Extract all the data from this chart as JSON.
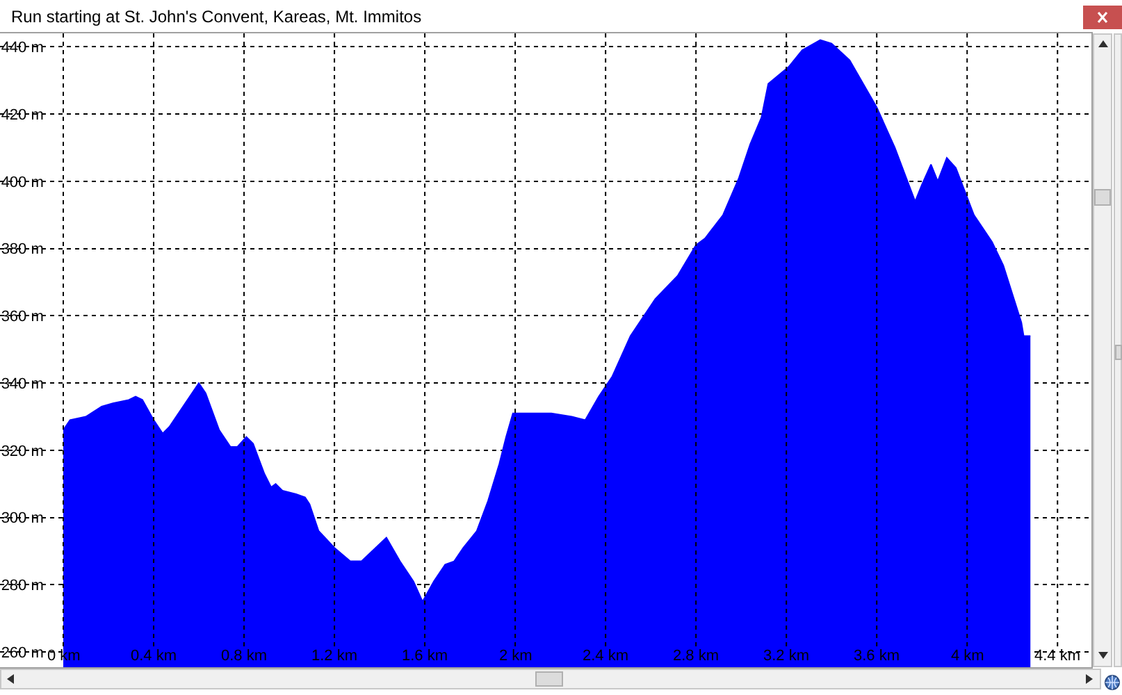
{
  "chart_data": {
    "type": "area",
    "title": "Run starting at St. John's Convent, Kareas, Mt. Immitos",
    "x": [
      0,
      0.03,
      0.1,
      0.17,
      0.22,
      0.29,
      0.32,
      0.35,
      0.4,
      0.44,
      0.47,
      0.6,
      0.63,
      0.69,
      0.74,
      0.77,
      0.81,
      0.84,
      0.89,
      0.92,
      0.94,
      0.97,
      1.03,
      1.07,
      1.09,
      1.13,
      1.2,
      1.27,
      1.32,
      1.43,
      1.49,
      1.55,
      1.59,
      1.64,
      1.69,
      1.73,
      1.77,
      1.83,
      1.88,
      1.93,
      1.96,
      1.99,
      2.16,
      2.25,
      2.31,
      2.37,
      2.43,
      2.51,
      2.62,
      2.72,
      2.8,
      2.84,
      2.92,
      2.99,
      3.04,
      3.09,
      3.12,
      3.21,
      3.27,
      3.35,
      3.4,
      3.48,
      3.6,
      3.68,
      3.77,
      3.8,
      3.84,
      3.87,
      3.91,
      3.95,
      4.03,
      4.11,
      4.16,
      4.24,
      4.25,
      4.28
    ],
    "values": [
      326,
      329,
      330,
      333,
      334,
      335,
      336,
      335,
      329,
      325,
      327,
      340,
      337,
      326,
      321,
      321,
      324,
      322,
      313,
      309,
      310,
      308,
      307,
      306,
      304,
      296,
      291,
      287,
      287,
      294,
      287,
      281,
      275,
      281,
      286,
      287,
      291,
      296,
      305,
      316,
      324,
      331,
      331,
      330,
      329,
      336,
      342,
      354,
      365,
      372,
      381,
      383,
      390,
      401,
      411,
      419,
      429,
      434,
      439,
      442,
      441,
      436,
      422,
      410,
      394,
      399,
      405,
      400,
      407,
      404,
      390,
      382,
      375,
      358,
      354,
      354
    ],
    "color": "#0000ff",
    "xlim": [
      -0.28,
      4.55
    ],
    "ylim": [
      255.5,
      444
    ],
    "xticks": [
      {
        "value": 0,
        "label": "0 km"
      },
      {
        "value": 0.4,
        "label": "0.4 km"
      },
      {
        "value": 0.8,
        "label": "0.8 km"
      },
      {
        "value": 1.2,
        "label": "1.2 km"
      },
      {
        "value": 1.6,
        "label": "1.6 km"
      },
      {
        "value": 2,
        "label": "2 km"
      },
      {
        "value": 2.4,
        "label": "2.4 km"
      },
      {
        "value": 2.8,
        "label": "2.8 km"
      },
      {
        "value": 3.2,
        "label": "3.2 km"
      },
      {
        "value": 3.6,
        "label": "3.6 km"
      },
      {
        "value": 4,
        "label": "4 km"
      },
      {
        "value": 4.4,
        "label": "4.4 km"
      }
    ],
    "yticks": [
      {
        "value": 260,
        "label": "260 m"
      },
      {
        "value": 280,
        "label": "280 m"
      },
      {
        "value": 300,
        "label": "300 m"
      },
      {
        "value": 320,
        "label": "320 m"
      },
      {
        "value": 340,
        "label": "340 m"
      },
      {
        "value": 360,
        "label": "360 m"
      },
      {
        "value": 380,
        "label": "380 m"
      },
      {
        "value": 400,
        "label": "400 m"
      },
      {
        "value": 420,
        "label": "420 m"
      },
      {
        "value": 440,
        "label": "440 m"
      }
    ],
    "grid": true
  }
}
